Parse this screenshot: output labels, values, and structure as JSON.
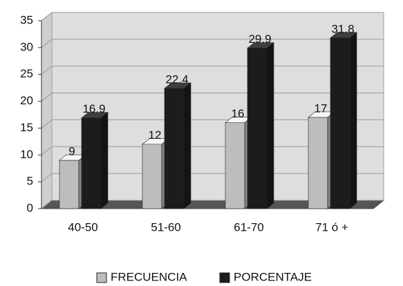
{
  "chart_data": {
    "type": "bar3d",
    "categories": [
      "40-50",
      "51-60",
      "61-70",
      "71 ó +"
    ],
    "series": [
      {
        "name": "FRECUENCIA",
        "color": "#bdbdbd",
        "values": [
          9,
          12,
          16,
          17
        ]
      },
      {
        "name": "PORCENTAJE",
        "color": "#1c1c1c",
        "values": [
          16.9,
          22.4,
          29.9,
          31.8
        ]
      }
    ],
    "ylim": [
      0,
      35
    ],
    "yticks": [
      0,
      5,
      10,
      15,
      20,
      25,
      30,
      35
    ],
    "grid": true,
    "legend": "bottom"
  }
}
